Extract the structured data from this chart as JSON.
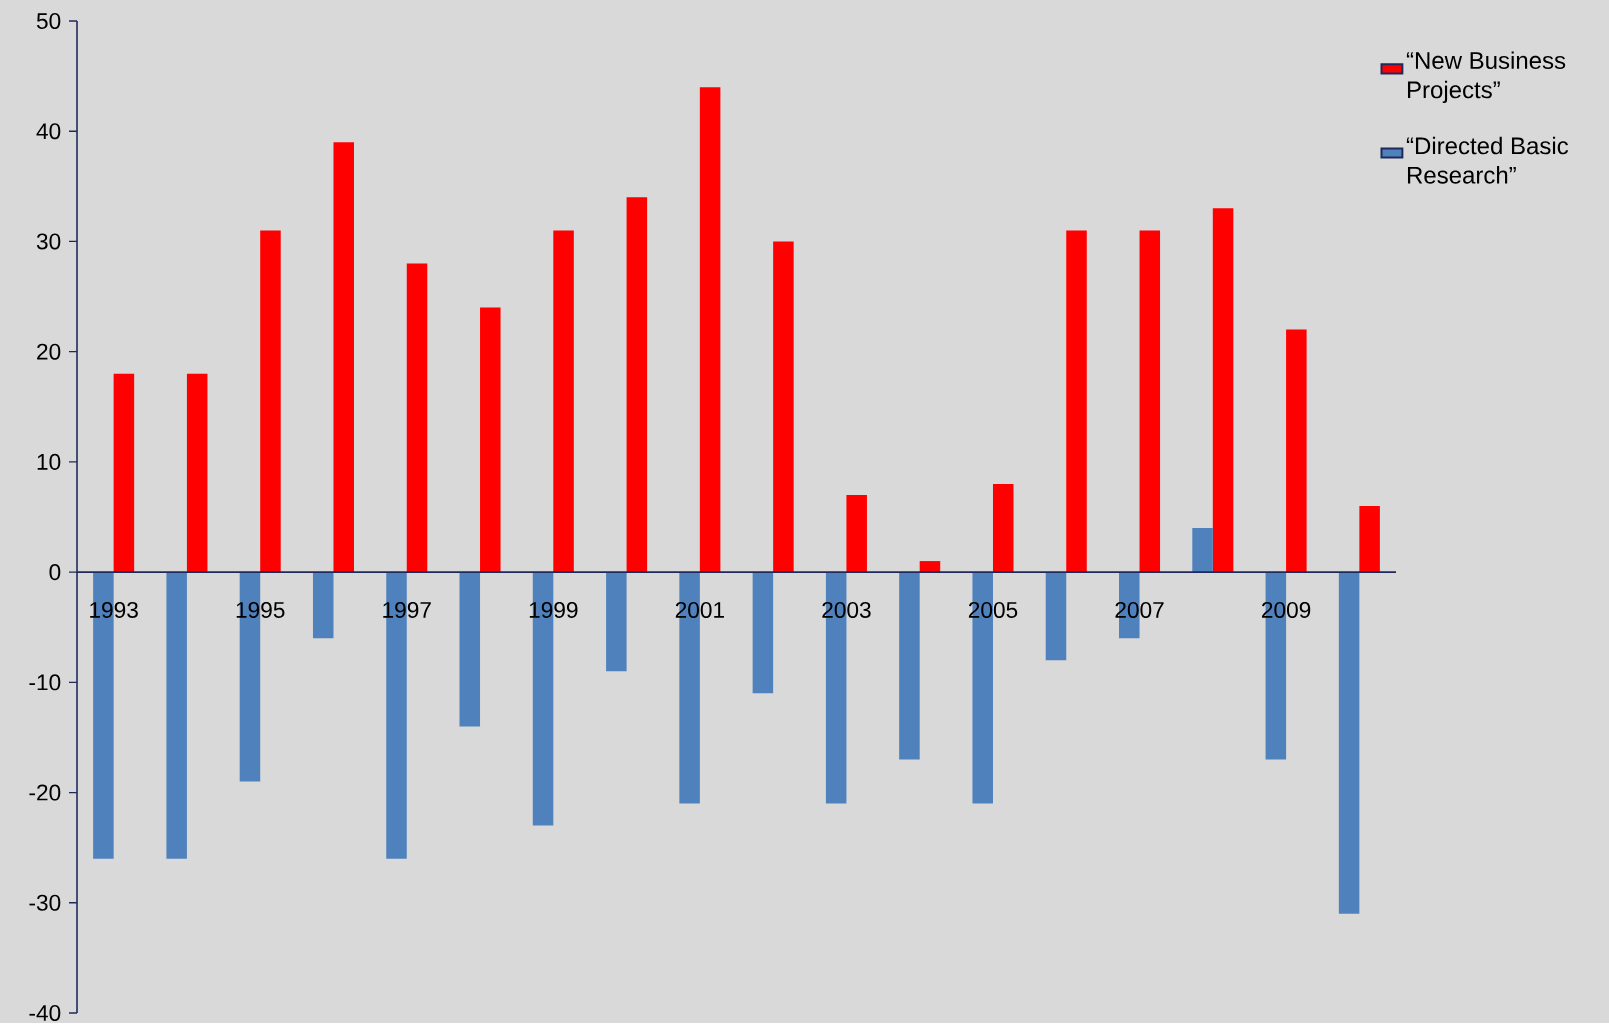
{
  "chart_data": {
    "type": "bar",
    "categories": [
      "1993",
      null,
      "1995",
      null,
      "1997",
      null,
      "1999",
      null,
      "2001",
      null,
      "2003",
      null,
      "2005",
      null,
      "2007",
      null,
      "2009",
      null
    ],
    "series": [
      {
        "name": "“New Business Projects”",
        "color": "#ff0000",
        "values": [
          18,
          18,
          31,
          39,
          28,
          24,
          31,
          34,
          44,
          30,
          7,
          1,
          8,
          31,
          31,
          33,
          22,
          6
        ]
      },
      {
        "name": "“Directed Basic Research”",
        "color": "#4f81bd",
        "values": [
          -26,
          -26,
          -19,
          -6,
          -26,
          -14,
          -23,
          -9,
          -21,
          -11,
          -21,
          -17,
          -21,
          -8,
          -6,
          4,
          -17,
          -31
        ]
      }
    ],
    "ylim": [
      -40,
      50
    ],
    "yticks": [
      -40,
      -30,
      -20,
      -10,
      0,
      10,
      20,
      30,
      40,
      50
    ],
    "grid": false,
    "legend": "top right"
  }
}
